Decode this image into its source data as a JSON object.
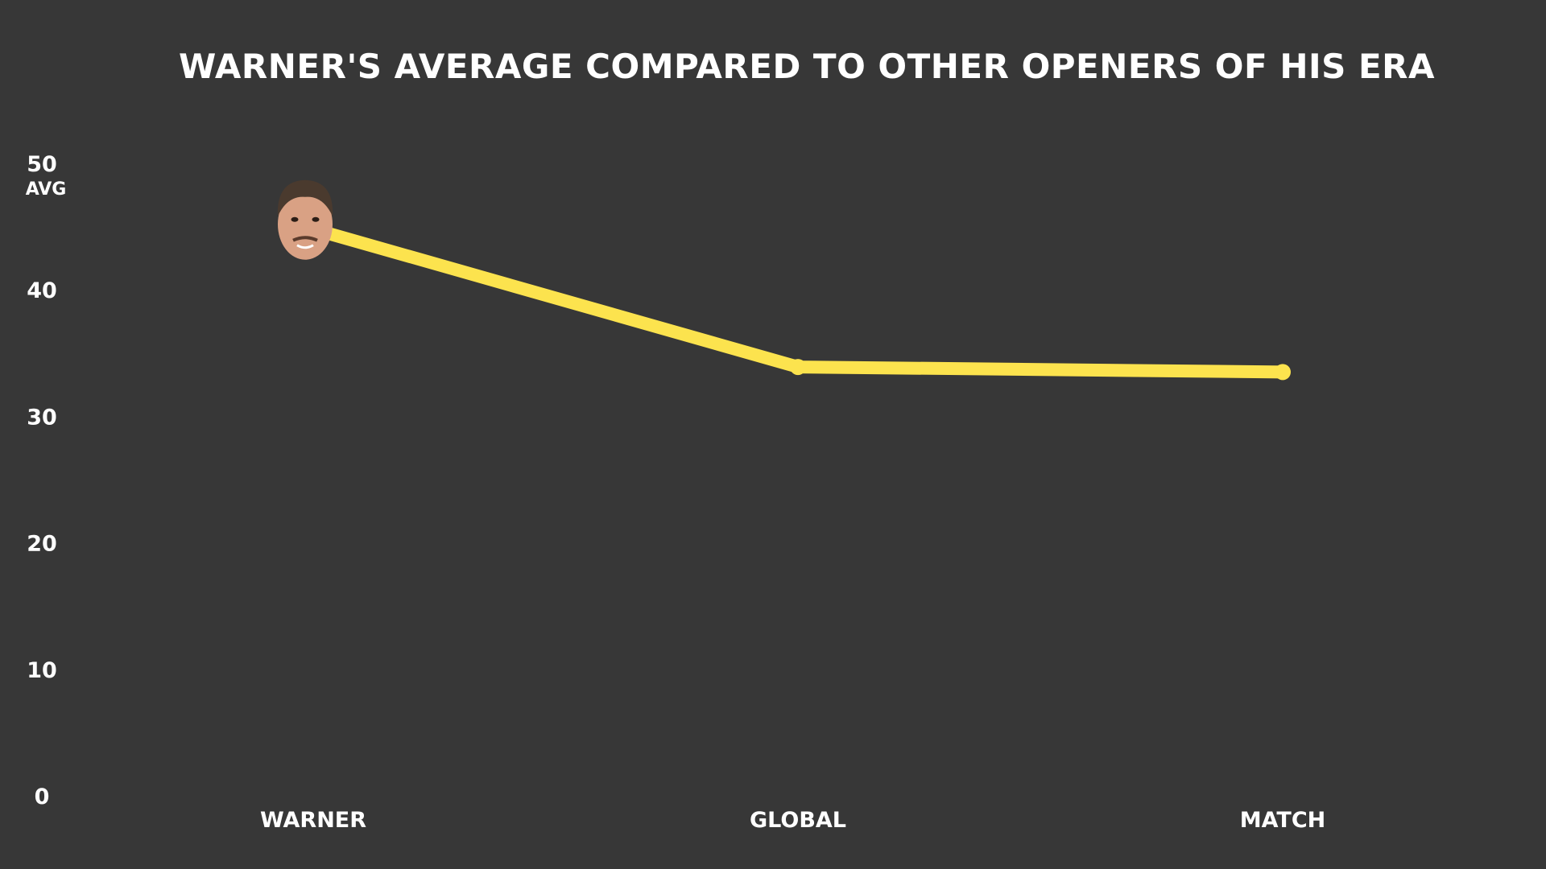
{
  "chart_data": {
    "type": "line",
    "title": "WARNER'S AVERAGE COMPARED TO OTHER OPENERS OF HIS ERA",
    "xlabel": "",
    "ylabel": "AVG",
    "categories": [
      "WARNER",
      "GLOBAL",
      "MATCH"
    ],
    "series": [
      {
        "values": [
          44.8,
          33.9,
          33.5
        ]
      }
    ],
    "ylim": [
      0,
      50
    ],
    "yticks": [
      0,
      10,
      20,
      30,
      40,
      50
    ],
    "grid": false,
    "legend": "none",
    "colors": {
      "background": "#373737",
      "line": "#FCE34E",
      "text": "#FFFFFF"
    },
    "marker_icon": "player-face-avatar"
  }
}
